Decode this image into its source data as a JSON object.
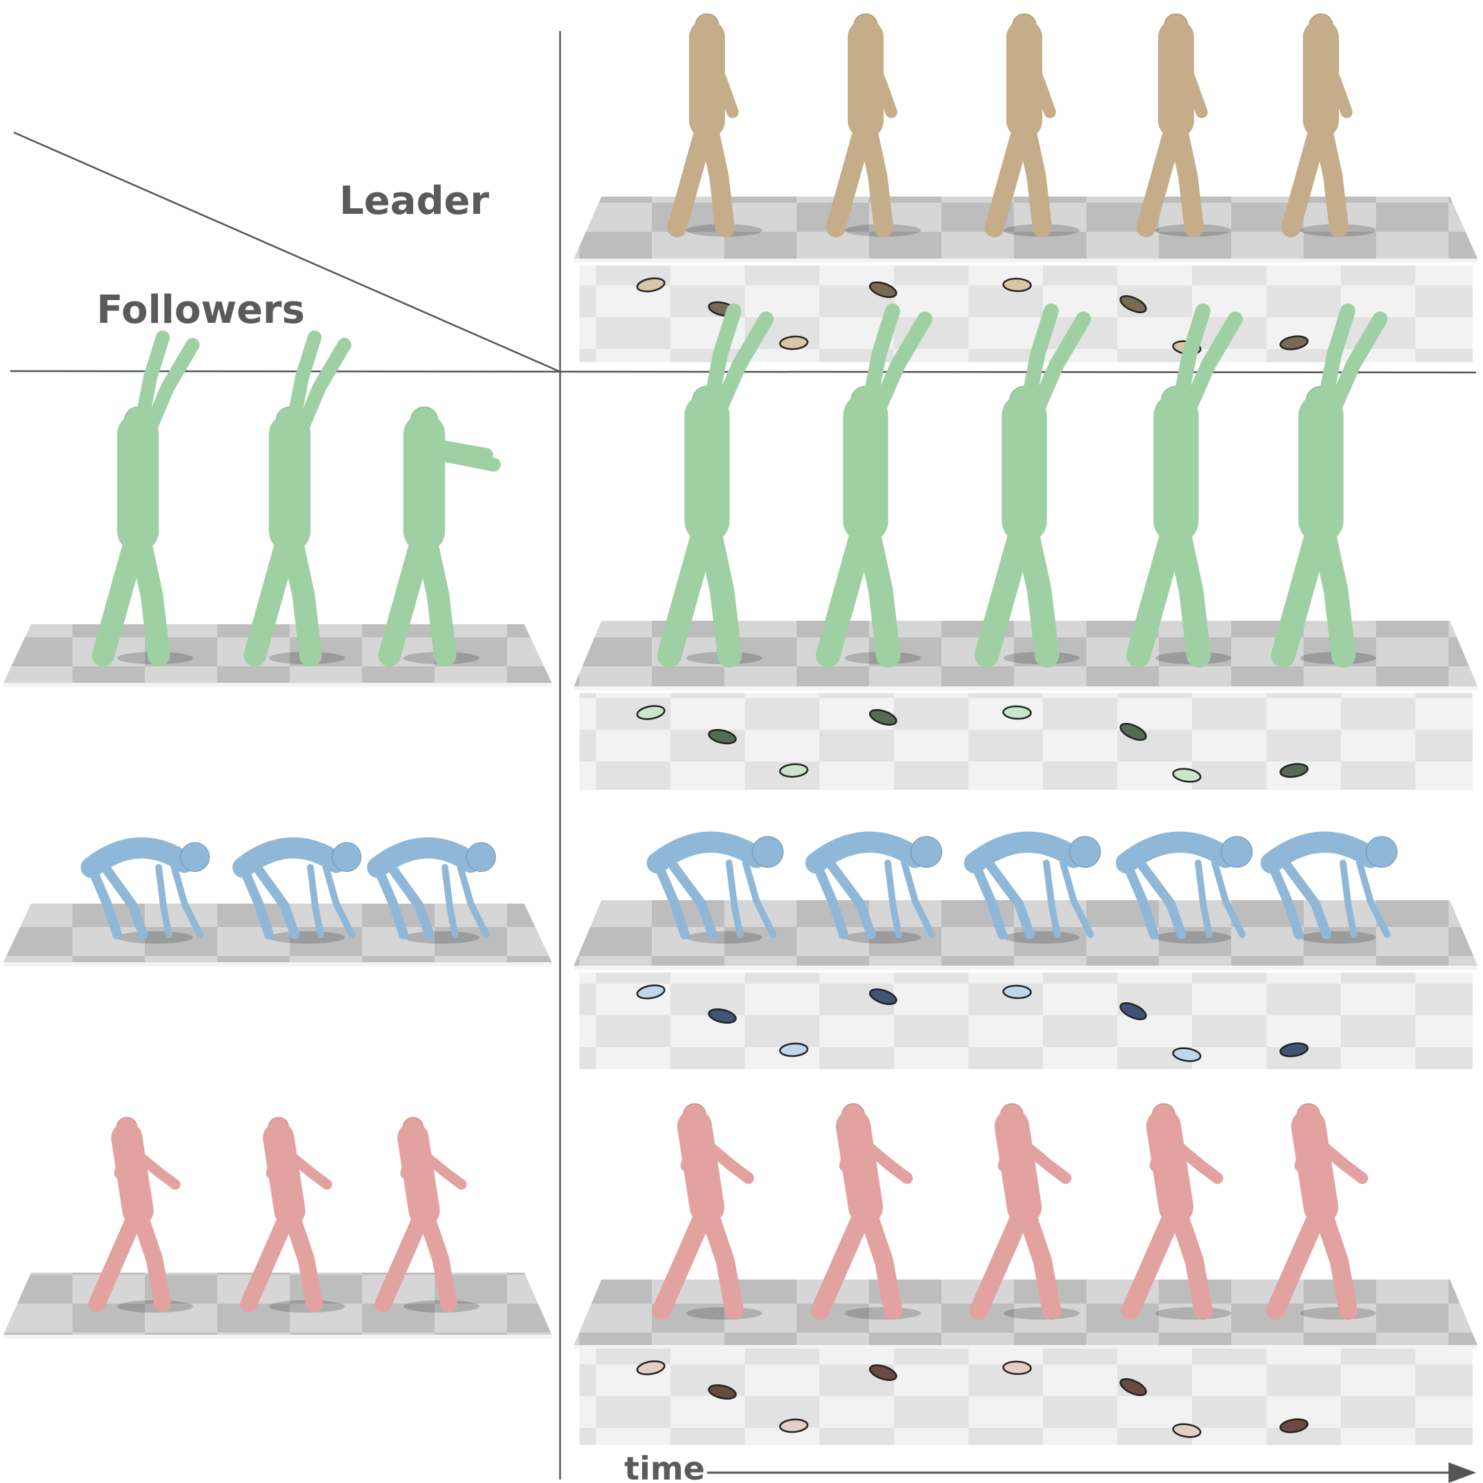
{
  "header": {
    "leader_label": "Leader",
    "followers_label": "Followers"
  },
  "time_axis": {
    "label": "time"
  },
  "rows": [
    {
      "id": "leader",
      "role": "leader",
      "color": "#c4ad88",
      "shoe_color": "#7a6a55",
      "shoe_light": "#d9c6a8",
      "pose": "walk",
      "left_figures": 0,
      "right_figures": 5
    },
    {
      "id": "follower-green",
      "role": "follower",
      "color": "#9fd0a4",
      "shoe_color": "#556b55",
      "shoe_light": "#c9e6cb",
      "pose": "reach",
      "left_figures": 3,
      "right_figures": 5
    },
    {
      "id": "follower-blue",
      "role": "follower",
      "color": "#8fb8d8",
      "shoe_color": "#3f5477",
      "shoe_light": "#bfd6ec",
      "pose": "crouch",
      "left_figures": 3,
      "right_figures": 5
    },
    {
      "id": "follower-pink",
      "role": "follower",
      "color": "#e2a3a0",
      "shoe_color": "#6b4a44",
      "shoe_light": "#e5cfc4",
      "pose": "run",
      "left_figures": 3,
      "right_figures": 5
    }
  ],
  "colors": {
    "divider": "#555555",
    "label": "#5a5a5a",
    "floor_dark": "#bdbdbd",
    "floor_light": "#dcdcdc"
  }
}
